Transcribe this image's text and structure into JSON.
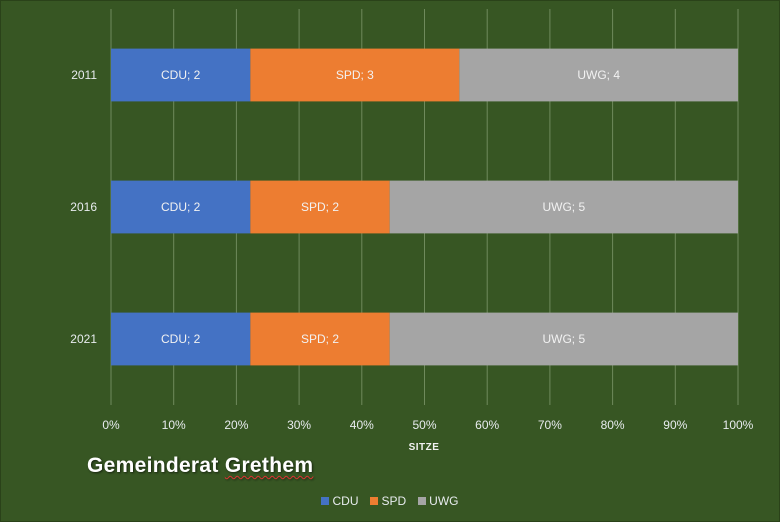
{
  "chart_data": {
    "type": "bar",
    "orientation": "horizontal",
    "stacked": "percent",
    "title": "Gemeinderat Grethem",
    "xlabel": "SITZE",
    "ylabel": "",
    "xlim": [
      0,
      100
    ],
    "x_ticks": [
      "0%",
      "10%",
      "20%",
      "30%",
      "40%",
      "50%",
      "60%",
      "70%",
      "80%",
      "90%",
      "100%"
    ],
    "categories": [
      "2011",
      "2016",
      "2021"
    ],
    "series": [
      {
        "name": "CDU",
        "color": "#4472c4",
        "values": [
          2,
          2,
          2
        ],
        "labels": [
          "CDU; 2",
          "CDU; 2",
          "CDU; 2"
        ]
      },
      {
        "name": "SPD",
        "color": "#ed7d31",
        "values": [
          3,
          2,
          2
        ],
        "labels": [
          "SPD; 3",
          "SPD; 2",
          "SPD; 2"
        ]
      },
      {
        "name": "UWG",
        "color": "#a5a5a5",
        "values": [
          4,
          5,
          5
        ],
        "labels": [
          "UWG; 4",
          "UWG; 5",
          "UWG; 5"
        ]
      }
    ],
    "grid": true,
    "legend_position": "bottom",
    "background_color": "#375623"
  }
}
